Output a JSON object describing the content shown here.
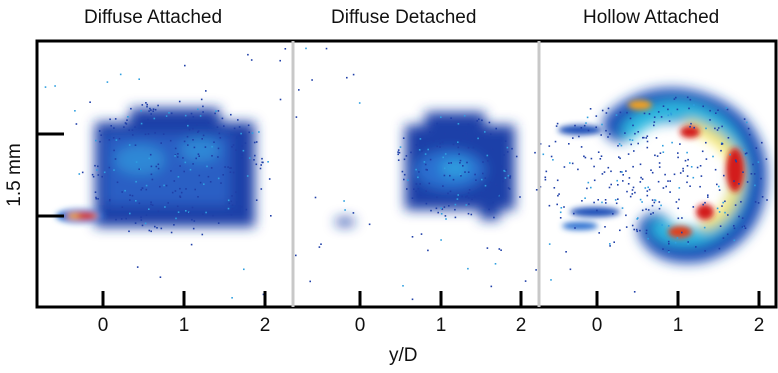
{
  "panels": [
    {
      "title": "Diffuse Attached",
      "ticks": [
        "0",
        "1",
        "2"
      ]
    },
    {
      "title": "Diffuse Detached",
      "ticks": [
        "0",
        "1",
        "2"
      ]
    },
    {
      "title": "Hollow Attached",
      "ticks": [
        "0",
        "1",
        "2"
      ]
    }
  ],
  "x_axis_label": "y/D",
  "scale_bar_label": "1.5 mm",
  "colormap": [
    "#1a2fa0",
    "#1f6fd0",
    "#27c2e8",
    "#8fe07a",
    "#f6e23a",
    "#f48a1f",
    "#d31a1a"
  ],
  "divider_color": "#c8c8c8"
}
